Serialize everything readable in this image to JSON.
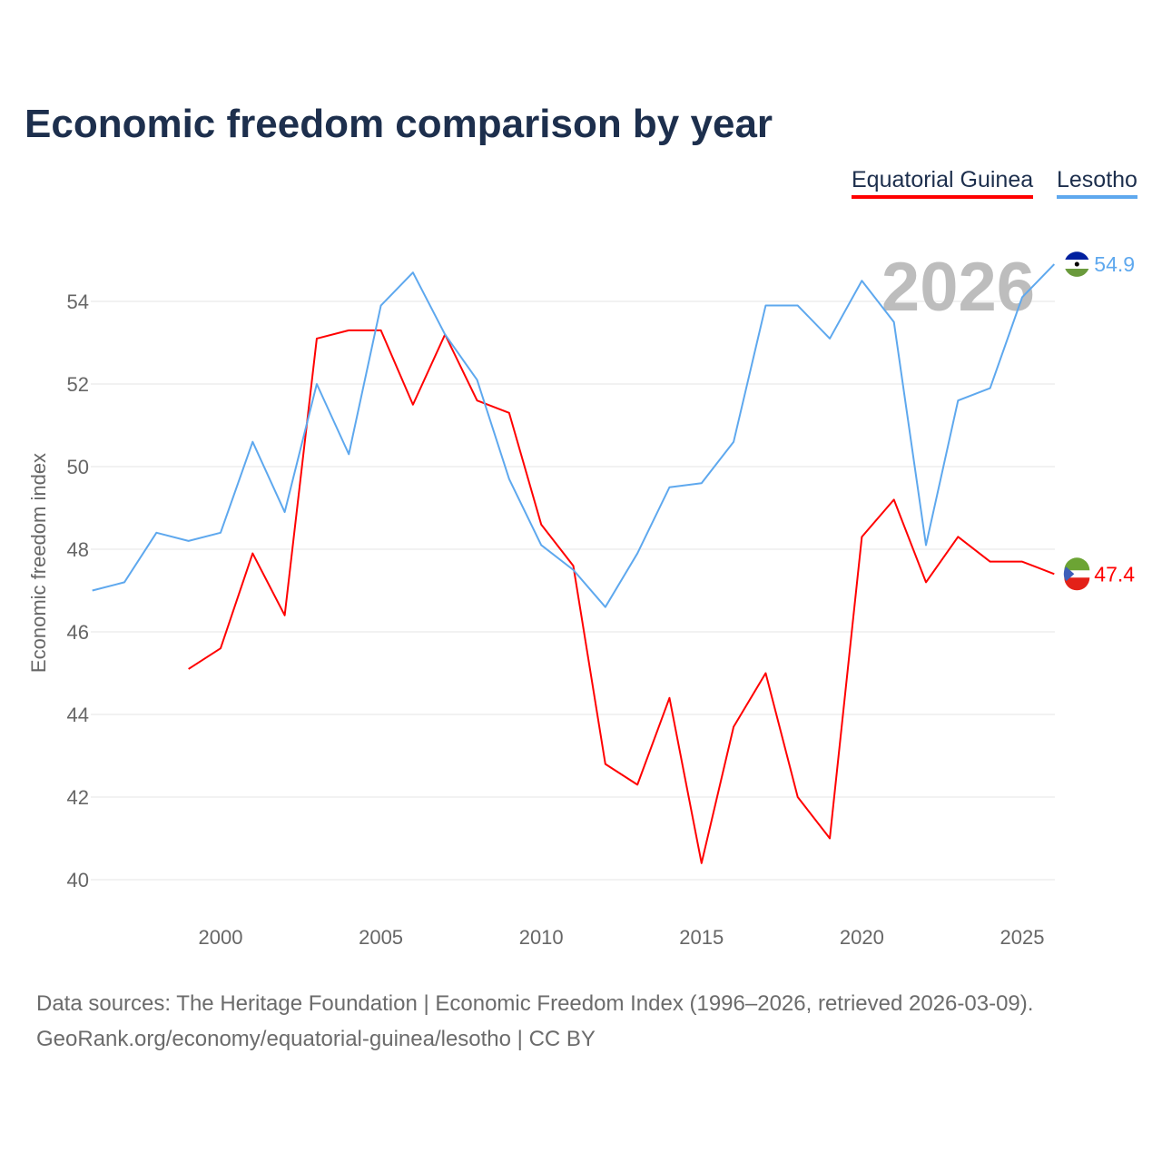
{
  "chart_data": {
    "type": "line",
    "title": "Economic freedom comparison by year",
    "xlabel": "",
    "ylabel": "Economic freedom index",
    "xlim": [
      1996,
      2026
    ],
    "ylim": [
      40,
      55
    ],
    "xticks": [
      2000,
      2005,
      2010,
      2015,
      2020,
      2025
    ],
    "yticks": [
      40,
      42,
      44,
      46,
      48,
      50,
      52,
      54
    ],
    "grid": true,
    "legend_position": "top-right",
    "current_year_label": "2026",
    "series": [
      {
        "name": "Equatorial Guinea",
        "color": "#ff0000",
        "end_label": "47.4",
        "x": [
          1999,
          2000,
          2001,
          2002,
          2003,
          2004,
          2005,
          2006,
          2007,
          2008,
          2009,
          2010,
          2011,
          2012,
          2013,
          2014,
          2015,
          2016,
          2017,
          2018,
          2019,
          2020,
          2021,
          2022,
          2023,
          2024,
          2025,
          2026
        ],
        "values": [
          45.1,
          45.6,
          47.9,
          46.4,
          53.1,
          53.3,
          53.3,
          51.5,
          53.2,
          51.6,
          51.3,
          48.6,
          47.6,
          42.8,
          42.3,
          44.4,
          40.4,
          43.7,
          45.0,
          42.0,
          41.0,
          48.3,
          49.2,
          47.2,
          48.3,
          47.7,
          47.7,
          47.4
        ]
      },
      {
        "name": "Lesotho",
        "color": "#5ea8ee",
        "end_label": "54.9",
        "x": [
          1996,
          1997,
          1998,
          1999,
          2000,
          2001,
          2002,
          2003,
          2004,
          2005,
          2006,
          2007,
          2008,
          2009,
          2010,
          2011,
          2012,
          2013,
          2014,
          2015,
          2016,
          2017,
          2018,
          2019,
          2020,
          2021,
          2022,
          2023,
          2024,
          2025,
          2026
        ],
        "values": [
          47.0,
          47.2,
          48.4,
          48.2,
          48.4,
          50.6,
          48.9,
          52.0,
          50.3,
          53.9,
          54.7,
          53.2,
          52.1,
          49.7,
          48.1,
          47.5,
          46.6,
          47.9,
          49.5,
          49.6,
          50.6,
          53.9,
          53.9,
          53.1,
          54.5,
          53.5,
          48.1,
          51.6,
          51.9,
          54.1,
          54.9
        ]
      }
    ]
  },
  "footer": {
    "line1": "Data sources: The Heritage Foundation | Economic Freedom Index (1996–2026, retrieved 2026-03-09).",
    "line2": "GeoRank.org/economy/equatorial-guinea/lesotho | CC BY"
  }
}
